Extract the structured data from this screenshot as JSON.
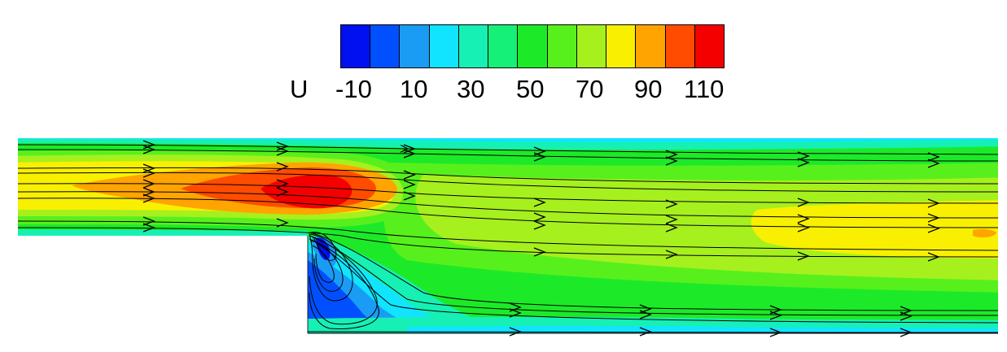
{
  "legend": {
    "variable": "U",
    "ticks": [
      "-10",
      "10",
      "30",
      "50",
      "70",
      "90",
      "110"
    ],
    "colors": [
      "#0010f0",
      "#0050ff",
      "#1a9cf4",
      "#10e4ff",
      "#16f0b4",
      "#14f078",
      "#1cea28",
      "#58f01c",
      "#a6f01e",
      "#f8f000",
      "#ffa400",
      "#ff4c00",
      "#f40000"
    ]
  }
}
